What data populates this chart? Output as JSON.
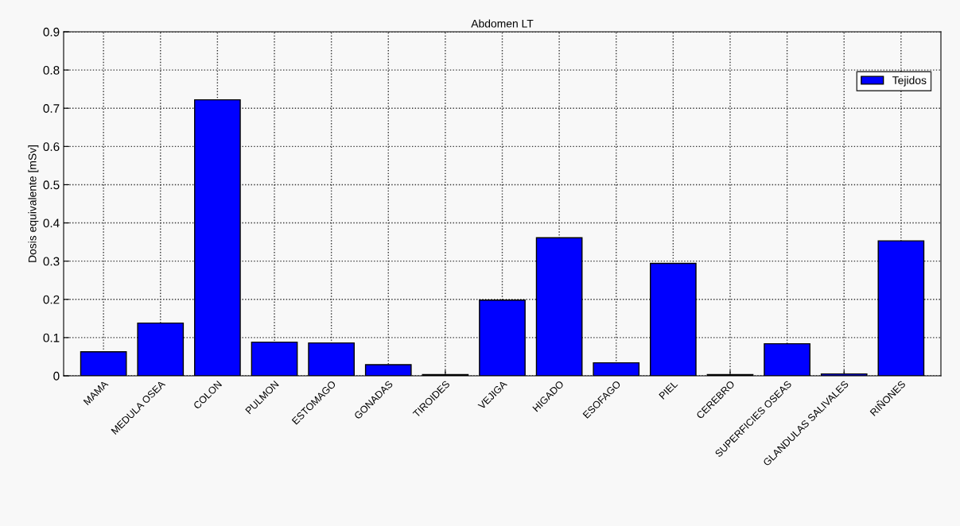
{
  "chart_data": {
    "type": "bar",
    "title": "Abdomen LT",
    "ylabel": "Dosis equivalente [mSv]",
    "categories": [
      "MAMA",
      "MEDULA OSEA",
      "COLON",
      "PULMON",
      "ESTOMAGO",
      "GONADAS",
      "TIROIDES",
      "VEJIGA",
      "HIGADO",
      "ESOFAGO",
      "PIEL",
      "CEREBRO",
      "SUPERFICIES OSEAS",
      "GLANDULAS SALIVALES",
      "RIÑONES"
    ],
    "series": [
      {
        "name": "Tejidos",
        "color": "#0000ff",
        "values": [
          0.063,
          0.138,
          0.722,
          0.088,
          0.086,
          0.029,
          0.003,
          0.198,
          0.361,
          0.034,
          0.294,
          0.003,
          0.084,
          0.005,
          0.353
        ]
      }
    ],
    "ylim": [
      0,
      0.9
    ],
    "yticks": [
      0,
      0.1,
      0.2,
      0.3,
      0.4,
      0.5,
      0.6,
      0.7,
      0.8,
      0.9
    ],
    "grid": true,
    "legend": "top right"
  }
}
